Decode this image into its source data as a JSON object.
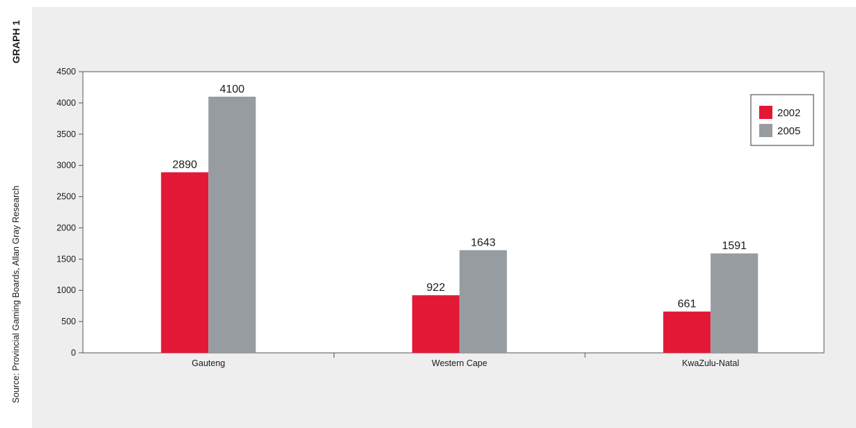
{
  "side": {
    "graph_label": "GRAPH 1",
    "source": "Source: Provincial Gaming Boards, Allan Gray Research"
  },
  "chart_data": {
    "type": "bar",
    "categories": [
      "Gauteng",
      "Western Cape",
      "KwaZulu-Natal"
    ],
    "series": [
      {
        "name": "2002",
        "values": [
          2890,
          922,
          661
        ],
        "color": "#e31837"
      },
      {
        "name": "2005",
        "values": [
          4100,
          1643,
          1591
        ],
        "color": "#979ca1"
      }
    ],
    "data_labels": [
      [
        "2890",
        "922",
        "661"
      ],
      [
        "4100",
        "1643",
        "1591"
      ]
    ],
    "title": "",
    "xlabel": "",
    "ylabel": "",
    "ylim": [
      0,
      4500
    ],
    "yticks": [
      0,
      500,
      1000,
      1500,
      2000,
      2500,
      3000,
      3500,
      4000,
      4500
    ],
    "grid": false,
    "legend_position": "top-right"
  }
}
